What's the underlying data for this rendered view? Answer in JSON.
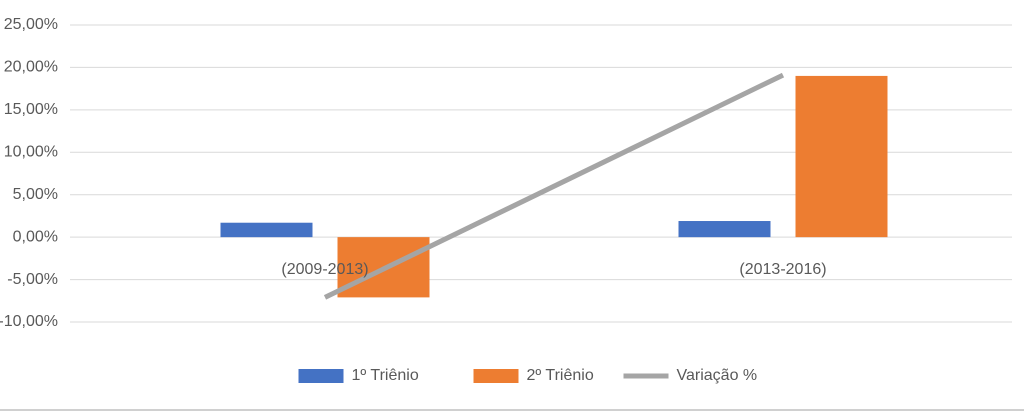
{
  "chart_data": {
    "type": "combo",
    "categories": [
      "(2009-2013)",
      "(2013-2016)"
    ],
    "series": [
      {
        "name": "1º Triênio",
        "type": "bar",
        "color": "#4472c4",
        "values": [
          1.7,
          1.9
        ]
      },
      {
        "name": "2º Triênio",
        "type": "bar",
        "color": "#ed7d31",
        "values": [
          -7.1,
          19.0
        ]
      },
      {
        "name": "Variação %",
        "type": "line",
        "color": "#a5a5a5",
        "values": [
          -7.1,
          19.1
        ]
      }
    ],
    "ylim": [
      -10,
      25
    ],
    "yticks": [
      {
        "value": -10,
        "label": "-10,00%"
      },
      {
        "value": -5,
        "label": "-5,00%"
      },
      {
        "value": 0,
        "label": "0,00%"
      },
      {
        "value": 5,
        "label": "5,00%"
      },
      {
        "value": 10,
        "label": "10,00%"
      },
      {
        "value": 15,
        "label": "15,00%"
      },
      {
        "value": 20,
        "label": "20,00%"
      },
      {
        "value": 25,
        "label": "25,00%"
      }
    ],
    "grid": true,
    "legend": "bottom"
  }
}
